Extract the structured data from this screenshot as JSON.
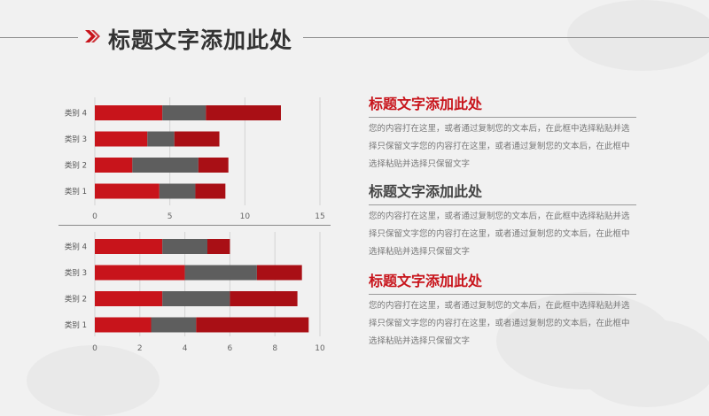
{
  "header": {
    "title": "标题文字添加此处"
  },
  "chart_data": [
    {
      "type": "bar",
      "orientation": "horizontal",
      "stacked": true,
      "categories": [
        "类别 1",
        "类别 2",
        "类别 3",
        "类别 4"
      ],
      "series": [
        {
          "color": "#c8141b",
          "values": [
            4.3,
            2.5,
            3.5,
            4.5
          ]
        },
        {
          "color": "#5e5e5e",
          "values": [
            2.4,
            4.4,
            1.8,
            2.9
          ]
        },
        {
          "color": "#a90f15",
          "values": [
            2.0,
            2.0,
            3.0,
            5.0
          ]
        }
      ],
      "xlim": [
        0,
        15
      ],
      "xticks": [
        "0",
        "5",
        "10",
        "15"
      ],
      "grid": true
    },
    {
      "type": "bar",
      "orientation": "horizontal",
      "stacked": true,
      "categories": [
        "类别 1",
        "类别 2",
        "类别 3",
        "类别 4"
      ],
      "series": [
        {
          "color": "#c8141b",
          "values": [
            2.5,
            3.0,
            4.0,
            3.0
          ]
        },
        {
          "color": "#5e5e5e",
          "values": [
            2.0,
            3.0,
            3.2,
            2.0
          ]
        },
        {
          "color": "#a90f15",
          "values": [
            5.0,
            3.0,
            2.0,
            1.0
          ]
        }
      ],
      "xlim": [
        0,
        10
      ],
      "xticks": [
        "0",
        "2",
        "4",
        "6",
        "8",
        "10"
      ],
      "grid": true
    }
  ],
  "sections": [
    {
      "title": "标题文字添加此处",
      "title_color": "#c8141b",
      "body": "您的内容打在这里，或者通过复制您的文本后，在此框中选择粘贴并选择只保留文字您的内容打在这里，或者通过复制您的文本后，在此框中选择粘贴并选择只保留文字"
    },
    {
      "title": "标题文字添加此处",
      "title_color": "#444444",
      "body": "您的内容打在这里，或者通过复制您的文本后，在此框中选择粘贴并选择只保留文字您的内容打在这里，或者通过复制您的文本后，在此框中选择粘贴并选择只保留文字"
    },
    {
      "title": "标题文字添加此处",
      "title_color": "#c8141b",
      "body": "您的内容打在这里，或者通过复制您的文本后，在此框中选择粘贴并选择只保留文字您的内容打在这里，或者通过复制您的文本后，在此框中选择粘贴并选择只保留文字"
    }
  ]
}
